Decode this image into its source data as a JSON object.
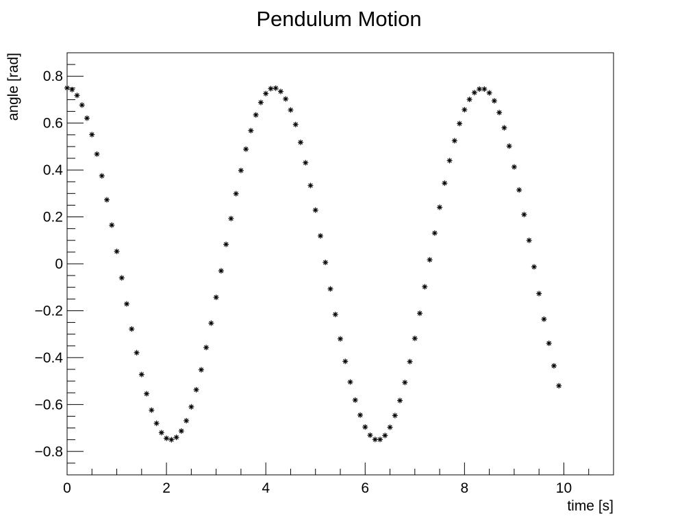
{
  "chart_data": {
    "type": "scatter",
    "title": "Pendulum Motion",
    "xlabel": "time [s]",
    "ylabel": "angle [rad]",
    "xlim": [
      0,
      11
    ],
    "ylim": [
      -0.9,
      0.9
    ],
    "xticks": [
      0,
      2,
      4,
      6,
      8,
      10
    ],
    "xtick_labels": [
      "0",
      "2",
      "4",
      "6",
      "8",
      "10"
    ],
    "yticks": [
      -0.8,
      -0.6,
      -0.4,
      -0.2,
      0,
      0.2,
      0.4,
      0.6,
      0.8
    ],
    "ytick_labels": [
      "−0.8",
      "−0.6",
      "−0.4",
      "−0.2",
      "0",
      "0.2",
      "0.4",
      "0.6",
      "0.8"
    ],
    "grid": false,
    "marker": "*",
    "series": [
      {
        "x": [
          0.0,
          0.1,
          0.2,
          0.3,
          0.4,
          0.5,
          0.6,
          0.7,
          0.8,
          0.9,
          1.0,
          1.1,
          1.2,
          1.3,
          1.4,
          1.5,
          1.6,
          1.7,
          1.8,
          1.9,
          2.0,
          2.1,
          2.2,
          2.3,
          2.4,
          2.5,
          2.6,
          2.7,
          2.8,
          2.9,
          3.0,
          3.1,
          3.2,
          3.3,
          3.4,
          3.5,
          3.6,
          3.7,
          3.8,
          3.9,
          4.0,
          4.1,
          4.2,
          4.3,
          4.4,
          4.5,
          4.6,
          4.7,
          4.8,
          4.9,
          5.0,
          5.1,
          5.2,
          5.3,
          5.4,
          5.5,
          5.6,
          5.7,
          5.8,
          5.9,
          6.0,
          6.1,
          6.2,
          6.3,
          6.4,
          6.5,
          6.6,
          6.7,
          6.8,
          6.9,
          7.0,
          7.1,
          7.2,
          7.3,
          7.4,
          7.5,
          7.6,
          7.7,
          7.8,
          7.9,
          8.0,
          8.1,
          8.2,
          8.3,
          8.4,
          8.5,
          8.6,
          8.7,
          8.8,
          8.9,
          9.0,
          9.1,
          9.2,
          9.3,
          9.4,
          9.5,
          9.6,
          9.7,
          9.8,
          9.9
        ],
        "y": [
          0.75,
          0.743,
          0.718,
          0.677,
          0.621,
          0.551,
          0.468,
          0.375,
          0.273,
          0.165,
          0.053,
          -0.06,
          -0.171,
          -0.278,
          -0.379,
          -0.472,
          -0.554,
          -0.624,
          -0.68,
          -0.72,
          -0.744,
          -0.75,
          -0.74,
          -0.713,
          -0.669,
          -0.61,
          -0.537,
          -0.452,
          -0.357,
          -0.253,
          -0.143,
          -0.03,
          0.083,
          0.193,
          0.299,
          0.398,
          0.489,
          0.568,
          0.635,
          0.688,
          0.726,
          0.747,
          0.749,
          0.735,
          0.703,
          0.656,
          0.594,
          0.518,
          0.431,
          0.334,
          0.229,
          0.119,
          0.006,
          -0.107,
          -0.216,
          -0.32,
          -0.416,
          -0.504,
          -0.581,
          -0.645,
          -0.696,
          -0.731,
          -0.749,
          -0.749,
          -0.732,
          -0.697,
          -0.647,
          -0.583,
          -0.506,
          -0.417,
          -0.318,
          -0.211,
          -0.098,
          0.017,
          0.131,
          0.241,
          0.344,
          0.44,
          0.525,
          0.598,
          0.657,
          0.701,
          0.73,
          0.745,
          0.745,
          0.729,
          0.695,
          0.645,
          0.58,
          0.502,
          0.413,
          0.315,
          0.21,
          0.1,
          -0.013,
          -0.127,
          -0.236,
          -0.339,
          -0.435,
          -0.52
        ]
      }
    ]
  }
}
